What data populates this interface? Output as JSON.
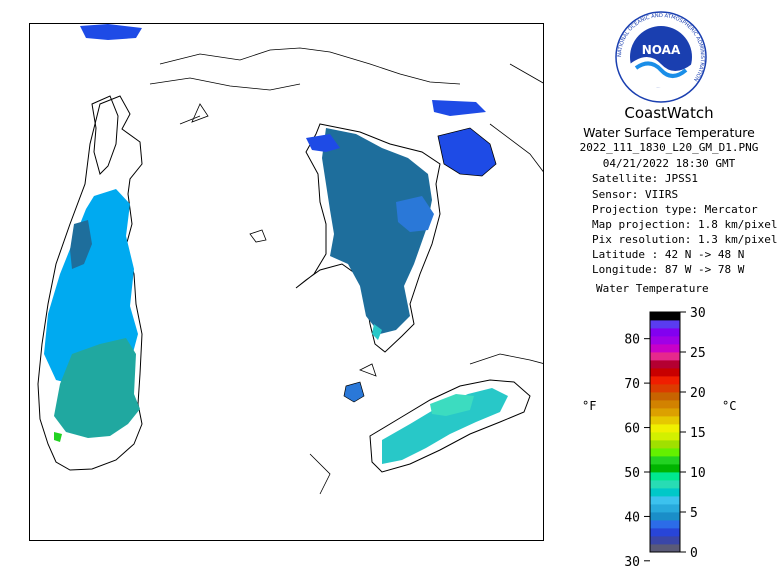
{
  "brand": "CoastWatch",
  "logo_text": "NOAA",
  "logo_ring_text": "NATIONAL OCEANIC AND ATMOSPHERIC ADMINISTRATION",
  "product_title": "Water Surface Temperature",
  "filename": "2022_111_1830_L20_GM_D1.PNG",
  "datetime": "04/21/2022   18:30 GMT",
  "metadata": [
    {
      "label": "Satellite:",
      "value": "JPSS1"
    },
    {
      "label": "Sensor:",
      "value": "VIIRS"
    },
    {
      "label": "Projection type:",
      "value": "Mercator"
    },
    {
      "label": "Map projection:",
      "value": "1.8 km/pixel"
    },
    {
      "label": "Pix resolution:",
      "value": "1.3 km/pixel"
    },
    {
      "label": "Latitude :",
      "value": "42 N -> 48 N"
    },
    {
      "label": "Longitude:",
      "value": "87 W -> 78 W"
    }
  ],
  "legend": {
    "title": "Water Temperature",
    "left_unit": "°F",
    "right_unit": "°C",
    "fahrenheit_ticks": [
      30,
      40,
      50,
      60,
      70,
      80
    ],
    "celsius_ticks": [
      0,
      5,
      10,
      15,
      20,
      25,
      30
    ],
    "colors": [
      "#5a5a78",
      "#3a46a8",
      "#2845d8",
      "#2c6ce8",
      "#1a8ec8",
      "#28aadc",
      "#3cc2ee",
      "#00c8c8",
      "#28dcb4",
      "#00e890",
      "#00b400",
      "#22d222",
      "#64f000",
      "#a0e000",
      "#d2f000",
      "#f0f000",
      "#e6c800",
      "#dca000",
      "#d28200",
      "#c86400",
      "#dc3c00",
      "#f01e00",
      "#c80000",
      "#b40032",
      "#e6288c",
      "#c800c8",
      "#a000e6",
      "#8200f0",
      "#5a3cf0",
      "#000000"
    ]
  },
  "map": {
    "colors": {
      "land": "#ffffff",
      "coastline": "#000000",
      "very_cold": "#1e4be6",
      "cold_dark_teal": "#1e6e9c",
      "cold_blue": "#2a78d8",
      "light_blue": "#00aaf0",
      "aqua": "#28c8c8",
      "teal_green": "#20a8a0",
      "cyan_green": "#3cdcc0",
      "green": "#22d222"
    }
  }
}
